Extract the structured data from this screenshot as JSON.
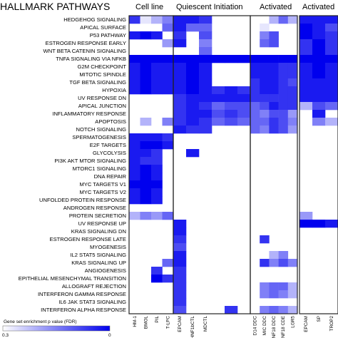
{
  "chart_data": {
    "type": "heatmap",
    "title": "HALLMARK PATHWAYS",
    "groups": [
      {
        "label": "Cell line",
        "columns": [
          "HM-1",
          "BMOL",
          "PIL",
          "T-LPC"
        ]
      },
      {
        "label": "Quiescent Initiation",
        "columns": [
          "EPCAM",
          "HNF1bCTL",
          "MDCTL",
          "",
          "",
          ""
        ]
      },
      {
        "label": "Activated",
        "columns": [
          "D14 DDC",
          "MIC DDC",
          "NF18 DDC",
          "NF18 CDE",
          "LGR5"
        ]
      },
      {
        "label": "Activated",
        "columns": [
          "EPCAM",
          "SP",
          "TROP2"
        ]
      }
    ],
    "rows": [
      "HEDGEHOG SIGNALING",
      "APICAL SURFACE",
      "P53 PATHWAY",
      "ESTROGEN RESPONSE EARLY",
      "WNT BETA CATENIN SIGNALING",
      "TNFA SIGNALING VIA NFKB",
      "G2M CHECKPOINT",
      "MITOTIC SPINDLE",
      "TGF BETA SIGNALING",
      "HYPOXIA",
      "UV RESPONSE DN",
      "APICAL JUNCTION",
      "INFLAMMATORY RESPONSE",
      "APOPTOSIS",
      "NOTCH SIGNALING",
      "SPERMATOGENESIS",
      "E2F TARGETS",
      "GLYCOLYSIS",
      "PI3K AKT MTOR SIGNALING",
      "MTORC1 SIGNALING",
      "DNA REPAIR",
      "MYC TARGETS V1",
      "MYC TARGETS V2",
      "UNFOLDED PROTEIN RESPONSE",
      "ANDROGEN RESPONSE",
      "PROTEIN SECRETION",
      "UV RESPONSE UP",
      "KRAS SIGNALING DN",
      "ESTROGEN RESPONSE LATE",
      "MYOGENESIS",
      "IL2 STAT5 SIGNALING",
      "KRAS SIGNALING UP",
      "ANGIOGENESIS",
      "EPITHELIAL MESENCHYMAL TRANSITION",
      "ALLOGRAFT REJECTION",
      "INTERFERON GAMMA RESPONSE",
      "IL6 JAK STAT3 SIGNALING",
      "INTERFERON ALPHA RESPONSE"
    ],
    "values": [
      [
        0.8,
        0.1,
        0.3,
        0.5,
        0.9,
        0.9,
        0.8,
        0,
        0,
        0,
        0,
        0,
        0.3,
        0.6,
        0.3,
        0.9,
        0.9,
        0.9
      ],
      [
        0,
        0,
        0,
        0.6,
        0.9,
        0.6,
        0.6,
        0,
        0,
        0,
        0,
        0.1,
        0,
        0,
        0,
        1,
        0.9,
        0.7
      ],
      [
        0.9,
        1,
        0.9,
        0,
        0.8,
        0,
        0.7,
        0,
        0,
        0,
        0,
        0.5,
        0.7,
        0,
        0,
        1,
        0.9,
        0.8
      ],
      [
        0,
        0,
        0,
        0.4,
        0.9,
        0,
        0.5,
        0,
        0,
        0,
        0,
        0.6,
        0.7,
        0,
        0,
        0.8,
        1,
        0.8
      ],
      [
        0,
        0,
        0,
        0,
        0,
        0,
        0.6,
        0,
        0,
        0,
        0,
        0,
        0,
        0,
        0,
        0.8,
        1,
        0.8
      ],
      [
        1,
        1,
        1,
        1,
        1,
        1,
        1,
        1,
        1,
        1,
        1,
        1,
        1,
        1,
        1,
        1,
        1,
        1
      ],
      [
        0.9,
        1,
        0.9,
        0.9,
        0.9,
        1,
        0.9,
        0,
        0,
        0,
        0.9,
        0.9,
        0.9,
        0.8,
        0.8,
        0.9,
        1,
        0.9
      ],
      [
        0.9,
        1,
        0.9,
        0.9,
        0.9,
        1,
        0.9,
        0,
        0,
        0,
        0.9,
        0.9,
        0.9,
        0.8,
        0.8,
        0.9,
        1,
        0.9
      ],
      [
        0.9,
        1,
        0.9,
        0.9,
        0.9,
        1,
        0.9,
        0,
        0,
        0,
        0.8,
        0.9,
        0.9,
        0.8,
        0.7,
        0.9,
        0.9,
        0.9
      ],
      [
        0.9,
        1,
        0.9,
        0.9,
        0.9,
        1,
        0.9,
        0.8,
        0.9,
        0.8,
        0.8,
        0.9,
        0.9,
        0.8,
        0.8,
        0.9,
        0.9,
        0.9
      ],
      [
        0,
        0,
        0,
        0,
        0.8,
        0.9,
        0.9,
        0.9,
        0.9,
        0.9,
        0.8,
        0.8,
        0.8,
        0.8,
        0.8,
        0.9,
        0.9,
        0.9
      ],
      [
        0,
        0,
        0,
        0,
        0.8,
        0.9,
        0.8,
        0.6,
        0.7,
        0.7,
        0.6,
        0.7,
        0.9,
        0.8,
        0.8,
        0.3,
        0.7,
        0.6
      ],
      [
        0,
        0,
        0,
        0,
        0.8,
        0.9,
        0.9,
        0.7,
        0.8,
        0.7,
        0.6,
        0.5,
        0.7,
        0.7,
        0.4,
        0,
        0.9,
        0
      ],
      [
        0,
        0.3,
        0,
        0.5,
        0.8,
        0.9,
        0.8,
        0.6,
        0.7,
        0.6,
        0.6,
        0.6,
        0.8,
        0.7,
        0.5,
        0,
        0.5,
        0.3
      ],
      [
        0,
        0,
        0,
        0,
        0.9,
        0.8,
        0.8,
        0,
        0,
        0,
        0.6,
        0.5,
        0.8,
        0.7,
        0.4,
        0,
        0,
        0
      ],
      [
        0.9,
        0.9,
        0.9,
        0.8,
        0,
        0,
        0,
        0,
        0,
        0,
        0,
        0,
        0,
        0,
        0,
        0,
        0,
        0
      ],
      [
        0.9,
        1,
        1,
        0.9,
        0,
        0,
        0,
        0,
        0,
        0,
        0,
        0,
        0,
        0,
        0,
        0,
        0,
        0
      ],
      [
        0.9,
        0.9,
        0.8,
        0,
        0,
        0.9,
        0,
        0,
        0,
        0,
        0,
        0,
        0,
        0,
        0,
        0,
        0,
        0
      ],
      [
        0.9,
        0.8,
        0.8,
        0,
        0,
        0,
        0,
        0,
        0,
        0,
        0,
        0,
        0,
        0,
        0,
        0,
        0,
        0
      ],
      [
        0.9,
        1,
        0.9,
        0,
        0,
        0,
        0,
        0,
        0,
        0,
        0,
        0,
        0,
        0,
        0,
        0,
        0,
        0
      ],
      [
        0.9,
        1,
        0.9,
        0,
        0,
        0,
        0,
        0,
        0,
        0,
        0,
        0,
        0,
        0,
        0,
        0,
        0,
        0
      ],
      [
        1,
        1,
        1,
        0,
        0,
        0,
        0,
        0,
        0,
        0,
        0,
        0,
        0,
        0,
        0,
        0,
        0,
        0
      ],
      [
        0.9,
        1,
        0.9,
        0,
        0,
        0,
        0,
        0,
        0,
        0,
        0,
        0,
        0,
        0,
        0,
        0,
        0,
        0
      ],
      [
        0.9,
        1,
        0.9,
        0,
        0,
        0,
        0,
        0,
        0,
        0,
        0,
        0,
        0,
        0,
        0,
        0,
        0,
        0
      ],
      [
        0,
        0,
        0,
        0,
        0,
        0,
        0,
        0,
        0,
        0,
        0,
        0,
        0,
        0,
        0,
        0,
        0,
        0
      ],
      [
        0.3,
        0.5,
        0.4,
        0.6,
        0,
        0,
        0,
        0,
        0,
        0,
        0,
        0,
        0,
        0,
        0,
        0.4,
        0,
        0
      ],
      [
        0,
        0,
        0,
        0,
        0.9,
        0,
        0,
        0,
        0,
        0,
        0,
        0,
        0,
        0,
        0,
        1,
        1,
        0.9
      ],
      [
        0,
        0,
        0,
        0,
        0.9,
        0,
        0,
        0,
        0,
        0,
        0,
        0,
        0,
        0,
        0,
        0,
        0,
        0
      ],
      [
        0,
        0,
        0,
        0,
        0.8,
        0,
        0,
        0,
        0,
        0,
        0,
        0.8,
        0,
        0,
        0,
        0,
        0,
        0
      ],
      [
        0,
        0,
        0,
        0,
        0.7,
        0,
        0,
        0,
        0,
        0,
        0,
        0,
        0,
        0,
        0,
        0,
        0,
        0
      ],
      [
        0,
        0,
        0,
        0,
        0.9,
        0,
        0,
        0,
        0,
        0,
        0,
        0,
        0.3,
        0.5,
        0,
        0,
        0,
        0
      ],
      [
        0,
        0,
        0,
        0.6,
        0.9,
        0,
        0,
        0,
        0,
        0,
        0,
        0.8,
        0.5,
        0.7,
        0.5,
        0,
        0,
        0
      ],
      [
        0,
        0,
        0.8,
        0,
        0.8,
        0,
        0,
        0,
        0,
        0,
        0,
        0,
        0,
        0,
        0,
        0,
        0,
        0
      ],
      [
        0,
        0,
        1,
        0.8,
        0.8,
        0,
        0,
        0,
        0,
        0,
        0,
        0,
        0,
        0,
        0,
        0,
        0,
        0
      ],
      [
        0,
        0,
        0,
        0,
        0.8,
        0,
        0,
        0,
        0,
        0,
        0,
        0.5,
        0.6,
        0.6,
        0.3,
        0,
        0,
        0
      ],
      [
        0,
        0,
        0,
        0,
        0.8,
        0,
        0,
        0,
        0,
        0,
        0,
        0.5,
        0.6,
        0.5,
        0.3,
        0,
        0,
        0
      ],
      [
        0,
        0,
        0,
        0,
        0.8,
        0,
        0,
        0,
        0,
        0,
        0,
        0,
        0,
        0,
        0,
        0,
        0,
        0
      ],
      [
        0,
        0,
        0,
        0,
        0.7,
        0,
        0,
        0,
        0.8,
        0,
        0,
        0.5,
        0.6,
        0.5,
        0.3,
        0,
        0,
        0
      ]
    ],
    "color_scale": {
      "low": "#ffffff",
      "high": "#0000ee",
      "border": "#222222"
    },
    "legend": {
      "title": "Gene set enrichment p value (FDR)",
      "min_label": "0.3",
      "max_label": "0"
    }
  }
}
